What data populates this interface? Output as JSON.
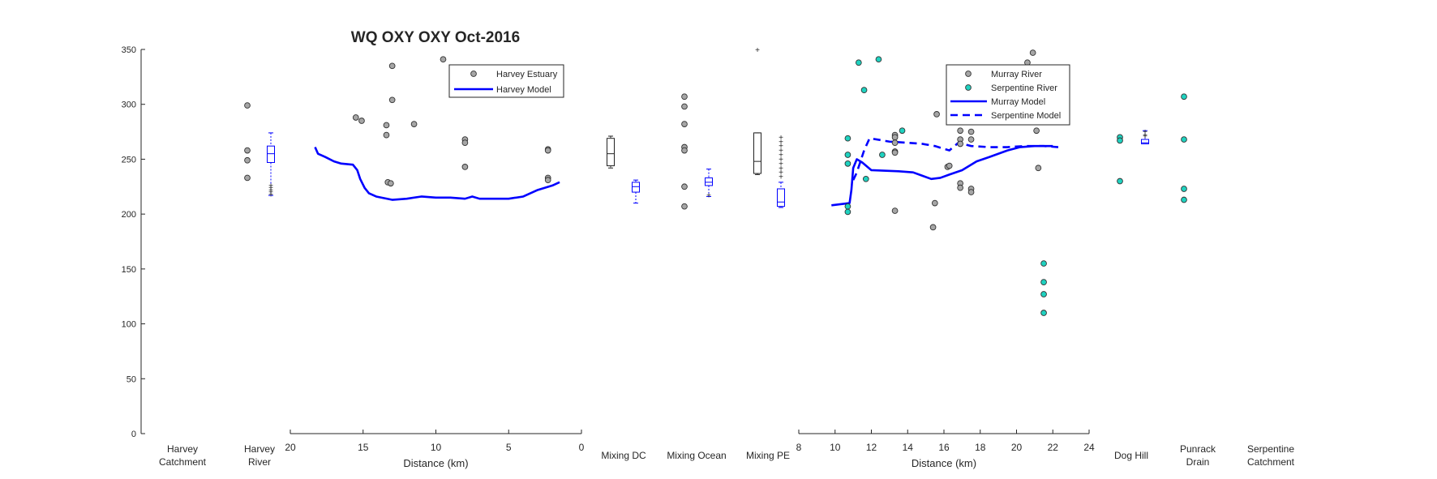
{
  "chart_data": {
    "type": "scatter",
    "title": "WQ OXY OXY Oct-2016",
    "ylim": [
      0,
      350
    ],
    "yticks": [
      0,
      50,
      100,
      150,
      200,
      250,
      300,
      350
    ],
    "colors": {
      "observed": "#a6a6a6",
      "serpentine": "#1fd2c0",
      "model": "#0000ff",
      "axis": "#262626"
    },
    "site_labels": [
      {
        "id": "harvey-catchment",
        "lines": [
          "Harvey",
          "Catchment"
        ]
      },
      {
        "id": "harvey-river",
        "lines": [
          "Harvey",
          "River"
        ]
      },
      {
        "id": "mixing-dc",
        "lines": [
          "Mixing DC"
        ]
      },
      {
        "id": "mixing-ocean",
        "lines": [
          "Mixing Ocean"
        ]
      },
      {
        "id": "mixing-pe",
        "lines": [
          "Mixing PE"
        ]
      },
      {
        "id": "dog-hill",
        "lines": [
          "Dog Hill"
        ]
      },
      {
        "id": "punrack-drain",
        "lines": [
          "Punrack",
          "Drain"
        ]
      },
      {
        "id": "serpentine-catchment",
        "lines": [
          "Serpentine",
          "Catchment"
        ]
      }
    ],
    "harvey_estuary": {
      "xlabel": "Distance (km)",
      "xlim": [
        20,
        0
      ],
      "xticks": [
        20,
        15,
        10,
        5,
        0
      ],
      "legend": {
        "observed": "Harvey Estuary",
        "model": "Harvey Model"
      },
      "observed": [
        [
          15.5,
          288
        ],
        [
          15.1,
          285
        ],
        [
          13.4,
          281
        ],
        [
          13.4,
          272
        ],
        [
          13.3,
          229
        ],
        [
          13.1,
          228
        ],
        [
          13.0,
          335
        ],
        [
          13.0,
          304
        ],
        [
          11.5,
          282
        ],
        [
          9.5,
          341
        ],
        [
          8.0,
          268
        ],
        [
          8.0,
          265
        ],
        [
          8.0,
          243
        ],
        [
          2.3,
          259
        ],
        [
          2.3,
          258
        ],
        [
          2.3,
          233
        ],
        [
          2.3,
          231
        ]
      ],
      "model": [
        [
          18.3,
          261
        ],
        [
          18.1,
          255
        ],
        [
          17.6,
          252
        ],
        [
          17.0,
          248
        ],
        [
          16.5,
          246
        ],
        [
          15.7,
          245
        ],
        [
          15.4,
          240
        ],
        [
          15.2,
          232
        ],
        [
          14.9,
          224
        ],
        [
          14.6,
          219
        ],
        [
          14.1,
          216
        ],
        [
          13.0,
          213
        ],
        [
          12.0,
          214
        ],
        [
          11.0,
          216
        ],
        [
          10.0,
          215
        ],
        [
          9.0,
          215
        ],
        [
          8.0,
          214
        ],
        [
          7.5,
          216
        ],
        [
          7.0,
          214
        ],
        [
          6.0,
          214
        ],
        [
          5.0,
          214
        ],
        [
          4.0,
          216
        ],
        [
          3.0,
          222
        ],
        [
          2.0,
          226
        ],
        [
          1.5,
          229
        ]
      ]
    },
    "murray_serpentine": {
      "xlabel": "Distance (km)",
      "xlim": [
        8,
        24
      ],
      "xticks": [
        8,
        10,
        12,
        14,
        16,
        18,
        20,
        22,
        24
      ],
      "legend": {
        "murray_obs": "Murray River",
        "serpentine_obs": "Serpentine River",
        "murray_model": "Murray Model",
        "serpentine_model": "Serpentine Model"
      },
      "murray_observed": [
        [
          13.3,
          272
        ],
        [
          13.3,
          270
        ],
        [
          13.3,
          265
        ],
        [
          13.3,
          257
        ],
        [
          13.3,
          256
        ],
        [
          13.3,
          203
        ],
        [
          15.4,
          188
        ],
        [
          15.5,
          210
        ],
        [
          15.6,
          291
        ],
        [
          16.2,
          243
        ],
        [
          16.3,
          244
        ],
        [
          16.9,
          276
        ],
        [
          16.9,
          268
        ],
        [
          16.9,
          264
        ],
        [
          16.9,
          228
        ],
        [
          16.9,
          224
        ],
        [
          17.5,
          275
        ],
        [
          17.5,
          268
        ],
        [
          17.5,
          223
        ],
        [
          17.5,
          220
        ],
        [
          20.6,
          338
        ],
        [
          20.9,
          347
        ],
        [
          21.1,
          276
        ],
        [
          21.2,
          242
        ]
      ],
      "serpentine_observed": [
        [
          10.7,
          269
        ],
        [
          10.7,
          254
        ],
        [
          10.7,
          246
        ],
        [
          10.7,
          207
        ],
        [
          10.7,
          202
        ],
        [
          11.3,
          338
        ],
        [
          11.6,
          313
        ],
        [
          11.7,
          232
        ],
        [
          12.4,
          341
        ],
        [
          12.6,
          254
        ],
        [
          13.7,
          276
        ],
        [
          21.5,
          155
        ],
        [
          21.5,
          138
        ],
        [
          21.5,
          127
        ],
        [
          21.5,
          110
        ]
      ],
      "murray_model": [
        [
          9.8,
          208
        ],
        [
          10.3,
          209
        ],
        [
          10.8,
          210
        ],
        [
          10.9,
          222
        ],
        [
          11.0,
          242
        ],
        [
          11.2,
          250
        ],
        [
          11.5,
          247
        ],
        [
          12.0,
          240
        ],
        [
          13.5,
          239
        ],
        [
          14.3,
          238
        ],
        [
          14.8,
          235
        ],
        [
          15.3,
          232
        ],
        [
          15.8,
          233
        ],
        [
          16.3,
          236
        ],
        [
          17.0,
          240
        ],
        [
          17.8,
          248
        ],
        [
          18.5,
          252
        ],
        [
          19.5,
          258
        ],
        [
          20.2,
          261
        ],
        [
          21.0,
          262
        ],
        [
          21.6,
          262
        ],
        [
          22.0,
          262
        ]
      ],
      "serpentine_model": [
        [
          11.0,
          231
        ],
        [
          11.2,
          238
        ],
        [
          11.6,
          258
        ],
        [
          11.9,
          269
        ],
        [
          12.3,
          268
        ],
        [
          13.0,
          266
        ],
        [
          14.0,
          265
        ],
        [
          14.8,
          264
        ],
        [
          15.5,
          262
        ],
        [
          16.3,
          258
        ],
        [
          16.8,
          265
        ],
        [
          17.5,
          262
        ],
        [
          18.5,
          261
        ],
        [
          19.5,
          261
        ],
        [
          20.5,
          262
        ],
        [
          21.5,
          262
        ],
        [
          22.3,
          261
        ]
      ]
    },
    "site_points": {
      "harvey_river_obs": [
        299,
        258,
        249,
        233
      ],
      "mixing_ocean_obs": [
        307,
        298,
        282,
        261,
        258,
        225,
        207
      ],
      "dog_hill_obs": [
        270,
        267,
        230
      ],
      "punrack_obs": [
        307,
        268,
        223,
        213
      ],
      "mixing_pe_outlier": 350
    },
    "boxplots": [
      {
        "site": "harvey-river",
        "group": "model",
        "whisker_low": 217,
        "q1": 247,
        "median": 255,
        "q3": 262,
        "whisker_high": 274,
        "outliers": [
          226,
          224,
          222,
          220,
          218
        ]
      },
      {
        "site": "mixing-dc",
        "group": "observed",
        "whisker_low": 242,
        "q1": 244,
        "median": 255,
        "q3": 269,
        "whisker_high": 271,
        "outliers": []
      },
      {
        "site": "mixing-dc",
        "group": "model",
        "whisker_low": 210,
        "q1": 220,
        "median": 225,
        "q3": 229,
        "whisker_high": 231,
        "outliers": []
      },
      {
        "site": "mixing-ocean",
        "group": "model",
        "whisker_low": 216,
        "q1": 226,
        "median": 229,
        "q3": 233,
        "whisker_high": 241,
        "outliers": [
          217
        ]
      },
      {
        "site": "mixing-pe",
        "group": "observed",
        "whisker_low": 236,
        "q1": 237,
        "median": 248,
        "q3": 274,
        "whisker_high": 274,
        "outliers": []
      },
      {
        "site": "mixing-pe",
        "group": "model",
        "whisker_low": 206,
        "q1": 207,
        "median": 211,
        "q3": 223,
        "whisker_high": 229,
        "outliers": [
          270,
          266,
          262,
          258,
          254,
          250,
          246,
          242,
          238,
          234
        ]
      },
      {
        "site": "dog-hill",
        "group": "model",
        "whisker_low": 264,
        "q1": 264,
        "median": 265,
        "q3": 268,
        "whisker_high": 276,
        "outliers": [
          275,
          272,
          271
        ]
      }
    ]
  }
}
